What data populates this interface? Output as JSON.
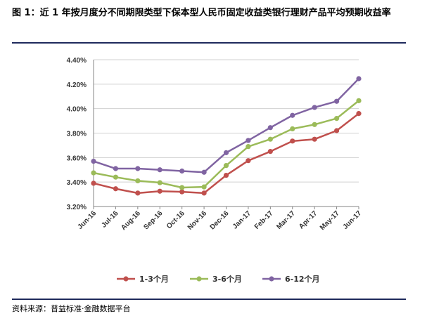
{
  "figure": {
    "title": "图 1：近 1 年按月度分不同期限类型下保本型人民币固定收益类银行理财产品平均预期收益率",
    "source": "资料来源：普益标准·金融数据平台"
  },
  "chart_data": {
    "type": "line",
    "categories": [
      "Jun-16",
      "Jul-16",
      "Aug-16",
      "Sep-16",
      "Oct-16",
      "Nov-16",
      "Dec-16",
      "Jan-17",
      "Feb-17",
      "Mar-17",
      "Apr-17",
      "May-17",
      "Jun-17"
    ],
    "series": [
      {
        "name": "1-3个月",
        "color": "#c0504d",
        "values": [
          3.39,
          3.345,
          3.31,
          3.325,
          3.32,
          3.31,
          3.455,
          3.575,
          3.65,
          3.735,
          3.75,
          3.82,
          3.96
        ]
      },
      {
        "name": "3-6个月",
        "color": "#9bbb59",
        "values": [
          3.475,
          3.44,
          3.41,
          3.395,
          3.355,
          3.36,
          3.535,
          3.69,
          3.75,
          3.835,
          3.87,
          3.92,
          4.065
        ]
      },
      {
        "name": "6-12个月",
        "color": "#8064a2",
        "values": [
          3.57,
          3.51,
          3.51,
          3.5,
          3.49,
          3.48,
          3.64,
          3.74,
          3.845,
          3.945,
          4.01,
          4.06,
          4.245
        ]
      }
    ],
    "yticks": [
      "3.20%",
      "3.40%",
      "3.60%",
      "3.80%",
      "4.00%",
      "4.20%",
      "4.40%"
    ],
    "ylim": [
      3.2,
      4.4
    ],
    "grid": true,
    "legend_position": "bottom"
  }
}
